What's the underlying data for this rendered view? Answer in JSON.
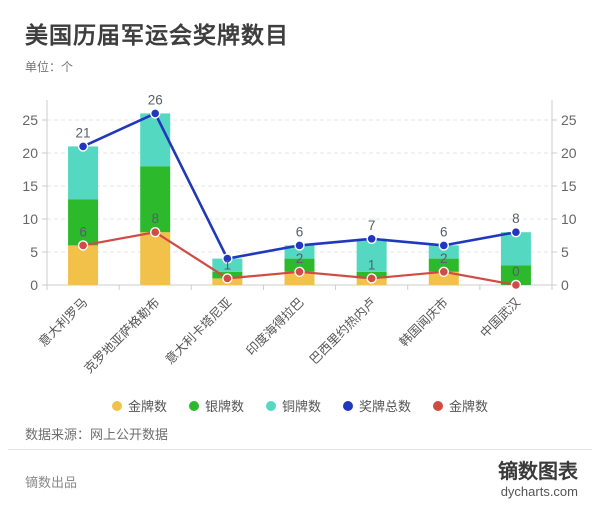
{
  "header": {
    "title": "美国历届军运会奖牌数目",
    "unit_label": "单位：个"
  },
  "chart_data": {
    "type": "bar",
    "subtype": "stacked-bar-with-lines",
    "categories": [
      "意大利罗马",
      "克罗地亚萨格勒布",
      "意大利卡塔尼亚",
      "印度海得拉巴",
      "巴西里约热内卢",
      "韩国闻庆市",
      "中国武汉"
    ],
    "series": [
      {
        "name": "金牌数",
        "type": "bar",
        "stack": true,
        "color": "#f2c14a",
        "values": [
          6,
          8,
          1,
          2,
          1,
          2,
          0
        ]
      },
      {
        "name": "银牌数",
        "type": "bar",
        "stack": true,
        "color": "#2cb92c",
        "values": [
          7,
          10,
          1,
          2,
          1,
          2,
          3
        ]
      },
      {
        "name": "铜牌数",
        "type": "bar",
        "stack": true,
        "color": "#55d8c1",
        "values": [
          8,
          8,
          2,
          2,
          5,
          2,
          5
        ]
      },
      {
        "name": "奖牌总数",
        "type": "line",
        "color": "#2138be",
        "values": [
          21,
          26,
          4,
          6,
          7,
          6,
          8
        ],
        "labels": [
          "21",
          "26",
          "",
          "6",
          "7",
          "6",
          "8"
        ]
      },
      {
        "name": "金牌数",
        "type": "line",
        "color": "#d04b44",
        "values": [
          6,
          8,
          1,
          2,
          1,
          2,
          0
        ],
        "labels": [
          "6",
          "8",
          "1",
          "2",
          "1",
          "2",
          "0"
        ]
      }
    ],
    "title": "美国历届军运会奖牌数目",
    "ylabel": "单位：个",
    "xlabel": "",
    "yticks": [
      0,
      5,
      10,
      15,
      20,
      25
    ],
    "ylim": [
      0,
      28
    ],
    "dual_y_axis": true,
    "grid": "horizontal-dashed",
    "legend_position": "bottom-center",
    "x_label_rotation": 45
  },
  "colors": {
    "grid_line": "#e5e5e5",
    "axis_line": "#cccccc",
    "axis_text": "#666666",
    "data_label": "#55606a",
    "x_label": "#555555"
  },
  "source": {
    "text": "数据来源：网上公开数据"
  },
  "footer": {
    "left_text": "镝数出品",
    "brand_name": "镝数图表",
    "brand_url": "dycharts.com"
  }
}
